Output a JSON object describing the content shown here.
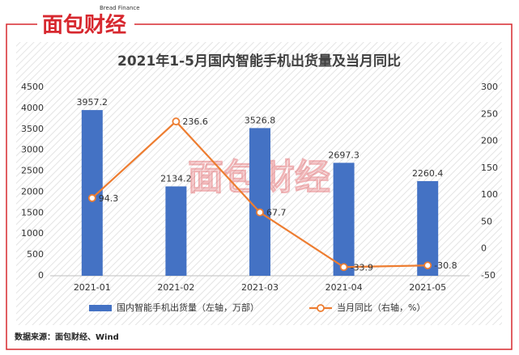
{
  "brand": {
    "name": "面包财经",
    "name_en": "Bread Finance"
  },
  "source": "数据来源：面包财经、Wind",
  "chart_data": {
    "type": "bar-line",
    "title": "2021年1-5月国内智能手机出货量及当月同比",
    "categories": [
      "2021-01",
      "2021-02",
      "2021-03",
      "2021-04",
      "2021-05"
    ],
    "series": [
      {
        "name": "国内智能手机出货量（左轴，万部）",
        "type": "bar",
        "color": "#4472c4",
        "values": [
          3957.2,
          2134.2,
          3526.8,
          2697.3,
          2260.4
        ]
      },
      {
        "name": "当月同比（右轴，%）",
        "type": "line",
        "axis": "y2",
        "color": "#ed7d31",
        "values": [
          94.3,
          236.6,
          67.7,
          -33.9,
          -30.8
        ]
      }
    ],
    "ylim": [
      0,
      4500
    ],
    "yticks": [
      0,
      500,
      1000,
      1500,
      2000,
      2500,
      3000,
      3500,
      4000,
      4500
    ],
    "y2lim": [
      -50,
      300
    ],
    "y2ticks": [
      -50,
      0,
      50,
      100,
      150,
      200,
      250,
      300
    ],
    "grid": false,
    "legend": "bottom"
  }
}
